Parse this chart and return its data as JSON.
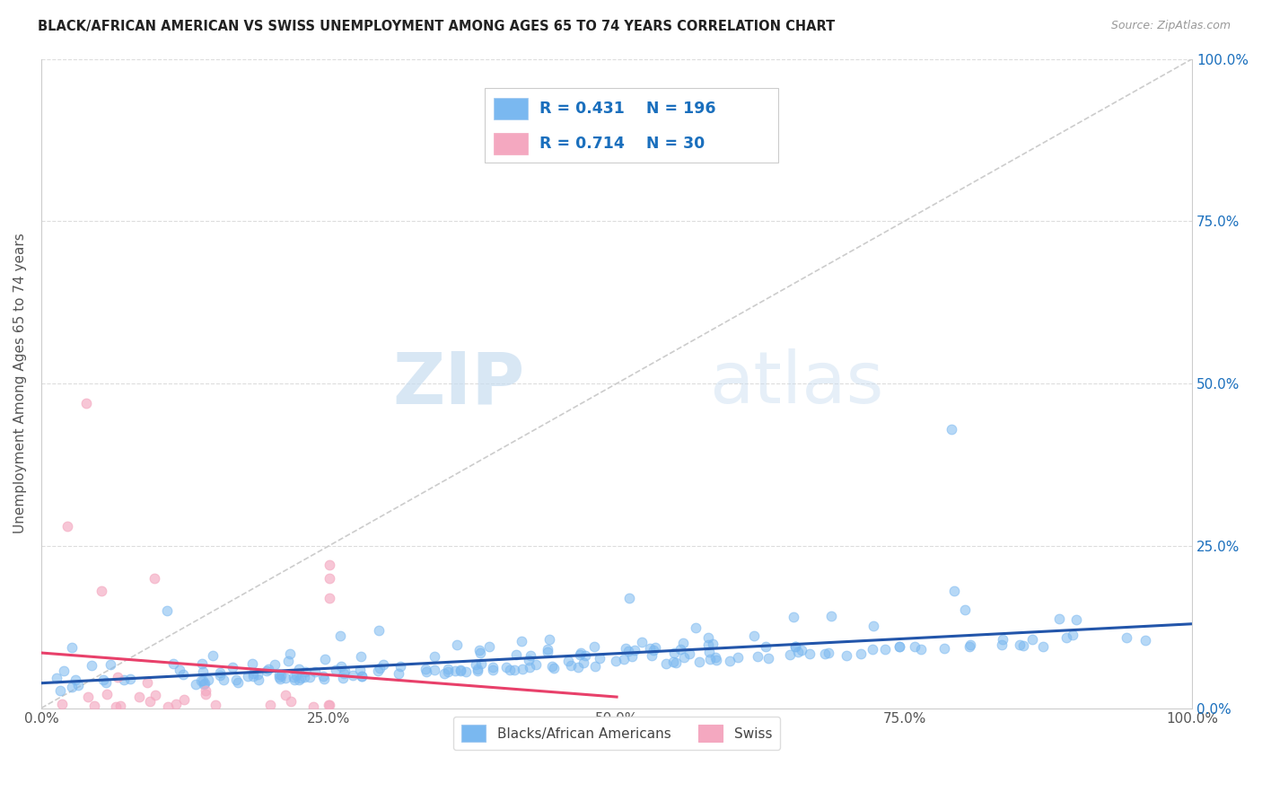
{
  "title": "BLACK/AFRICAN AMERICAN VS SWISS UNEMPLOYMENT AMONG AGES 65 TO 74 YEARS CORRELATION CHART",
  "source": "Source: ZipAtlas.com",
  "ylabel": "Unemployment Among Ages 65 to 74 years",
  "xlim": [
    0,
    1
  ],
  "ylim": [
    0,
    1
  ],
  "xtick_labels": [
    "0.0%",
    "25.0%",
    "50.0%",
    "75.0%",
    "100.0%"
  ],
  "xtick_vals": [
    0,
    0.25,
    0.5,
    0.75,
    1.0
  ],
  "ytick_vals": [
    0,
    0.25,
    0.5,
    0.75,
    1.0
  ],
  "right_ytick_labels": [
    "0.0%",
    "25.0%",
    "50.0%",
    "75.0%",
    "100.0%"
  ],
  "blue_line_color": "#2255aa",
  "pink_line_color": "#e8406a",
  "R_blue": 0.431,
  "N_blue": 196,
  "R_pink": 0.714,
  "N_pink": 30,
  "watermark_zip": "ZIP",
  "watermark_atlas": "atlas",
  "background_color": "#ffffff",
  "legend_R_N_color": "#1a6fbd",
  "blue_scatter_color": "#7ab8f0",
  "pink_scatter_color": "#f4a8c0",
  "blue_scatter_seed": 42,
  "pink_scatter_seed": 13,
  "N_blue_points": 196,
  "N_pink_points": 30,
  "diag_line_color": "#cccccc",
  "grid_color": "#dddddd"
}
